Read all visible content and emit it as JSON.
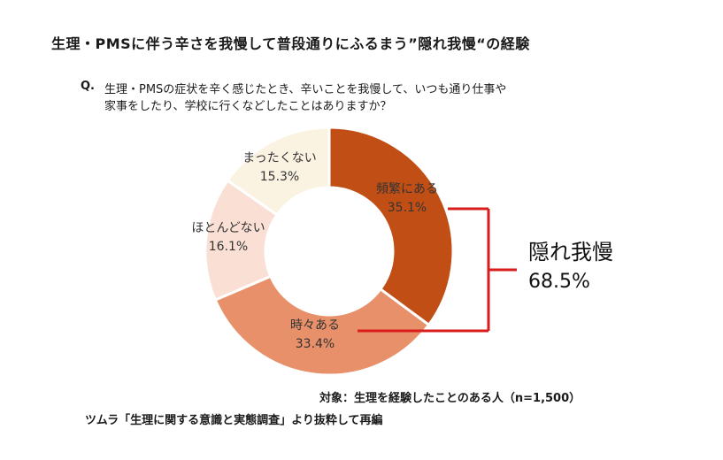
{
  "page": {
    "title": "生理・PMSに伴う辛さを我慢して普段通りにふるまう”隠れ我慢“の経験",
    "question_mark": "Q.",
    "question_line1": "生理・PMSの症状を辛く感じたとき、辛いことを我慢して、いつも通り仕事や",
    "question_line2": "家事をしたり、学校に行くなどしたことはありますか？",
    "target": "対象：生理を経験したことのある人（n=1,500）",
    "source": "ツムラ「生理に関する意識と実態調査」より抜粋して再編"
  },
  "chart_data": {
    "type": "pie",
    "variant": "donut",
    "categories": [
      "頻繁にある",
      "時々ある",
      "ほとんどない",
      "まったくない"
    ],
    "values": [
      35.1,
      33.4,
      16.1,
      15.3
    ],
    "value_labels": [
      "35.1%",
      "33.4%",
      "16.1%",
      "15.3%"
    ],
    "colors": [
      "#c14f15",
      "#e8906a",
      "#fae0d4",
      "#fbf3e2"
    ],
    "start": "12 o'clock, clockwise",
    "bracket": {
      "covers": [
        "頻繁にある",
        "時々ある"
      ],
      "label": "隠れ我慢",
      "value_label": "68.5%",
      "color": "#d91c1c"
    }
  }
}
